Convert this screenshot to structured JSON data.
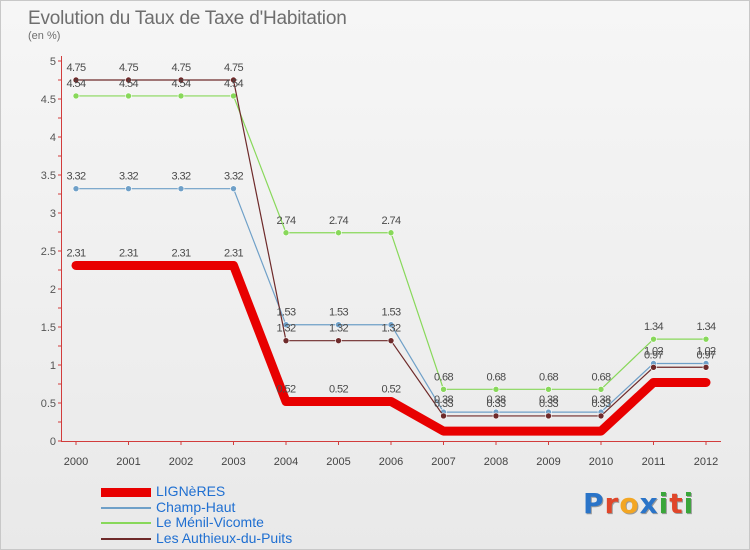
{
  "title": "Evolution du Taux de Taxe d'Habitation",
  "subtitle": "(en %)",
  "brand": {
    "letters": [
      "P",
      "r",
      "o",
      "x",
      "i",
      "t",
      "i"
    ],
    "colors": [
      "#2a74c8",
      "#e0462a",
      "#f3a623",
      "#2a74c8",
      "#3aa63a",
      "#e0462a",
      "#3aa63a"
    ]
  },
  "chart_data": {
    "type": "line",
    "x": [
      "2000",
      "2001",
      "2002",
      "2003",
      "2004",
      "2005",
      "2006",
      "2007",
      "2008",
      "2009",
      "2010",
      "2011",
      "2012"
    ],
    "ylim": [
      0,
      5
    ],
    "yticks": [
      "0",
      "0.5",
      "1",
      "1.5",
      "2",
      "2.5",
      "3",
      "3.5",
      "4",
      "4.5",
      "5"
    ],
    "grid": false,
    "legend_position": "bottom-left",
    "series": [
      {
        "name": "Les Authieux-du-Puits",
        "color": "#6e2a2a",
        "width": 1.2,
        "values": [
          4.75,
          4.75,
          4.75,
          4.75,
          1.32,
          1.32,
          1.32,
          0.33,
          0.33,
          0.33,
          0.33,
          0.97,
          0.97
        ],
        "labels": [
          "4.75",
          "4.75",
          "4.75",
          "4.75",
          "1.32",
          "1.32",
          "1.32",
          "0.33",
          "0.33",
          "0.33",
          "0.33",
          "0.97",
          "0.97"
        ]
      },
      {
        "name": "Le Ménil-Vicomte",
        "color": "#88d85a",
        "width": 1.2,
        "values": [
          4.54,
          4.54,
          4.54,
          4.54,
          2.74,
          2.74,
          2.74,
          0.68,
          0.68,
          0.68,
          0.68,
          1.34,
          1.34
        ],
        "labels": [
          "4.54",
          "4.54",
          "4.54",
          "4.54",
          "2.74",
          "2.74",
          "2.74",
          "0.68",
          "0.68",
          "0.68",
          "0.68",
          "1.34",
          "1.34"
        ]
      },
      {
        "name": "Champ-Haut",
        "color": "#6fa0c8",
        "width": 1.2,
        "values": [
          3.32,
          3.32,
          3.32,
          3.32,
          1.53,
          1.53,
          1.53,
          0.38,
          0.38,
          0.38,
          0.38,
          1.02,
          1.02
        ],
        "labels": [
          "3.32",
          "3.32",
          "3.32",
          "3.32",
          "1.53",
          "1.53",
          "1.53",
          "0.38",
          "0.38",
          "0.38",
          "0.38",
          "1.02",
          "1.02"
        ]
      },
      {
        "name": "LIGNèRES",
        "color": "#e80000",
        "width": 9,
        "values": [
          2.31,
          2.31,
          2.31,
          2.31,
          0.52,
          0.52,
          0.52,
          0.13,
          0.13,
          0.13,
          0.13,
          0.77,
          0.77
        ],
        "labels": [
          "2.31",
          "2.31",
          "2.31",
          "2.31",
          "0.52",
          "0.52",
          "0.52",
          "",
          "",
          "",
          "",
          "",
          ""
        ]
      }
    ]
  }
}
